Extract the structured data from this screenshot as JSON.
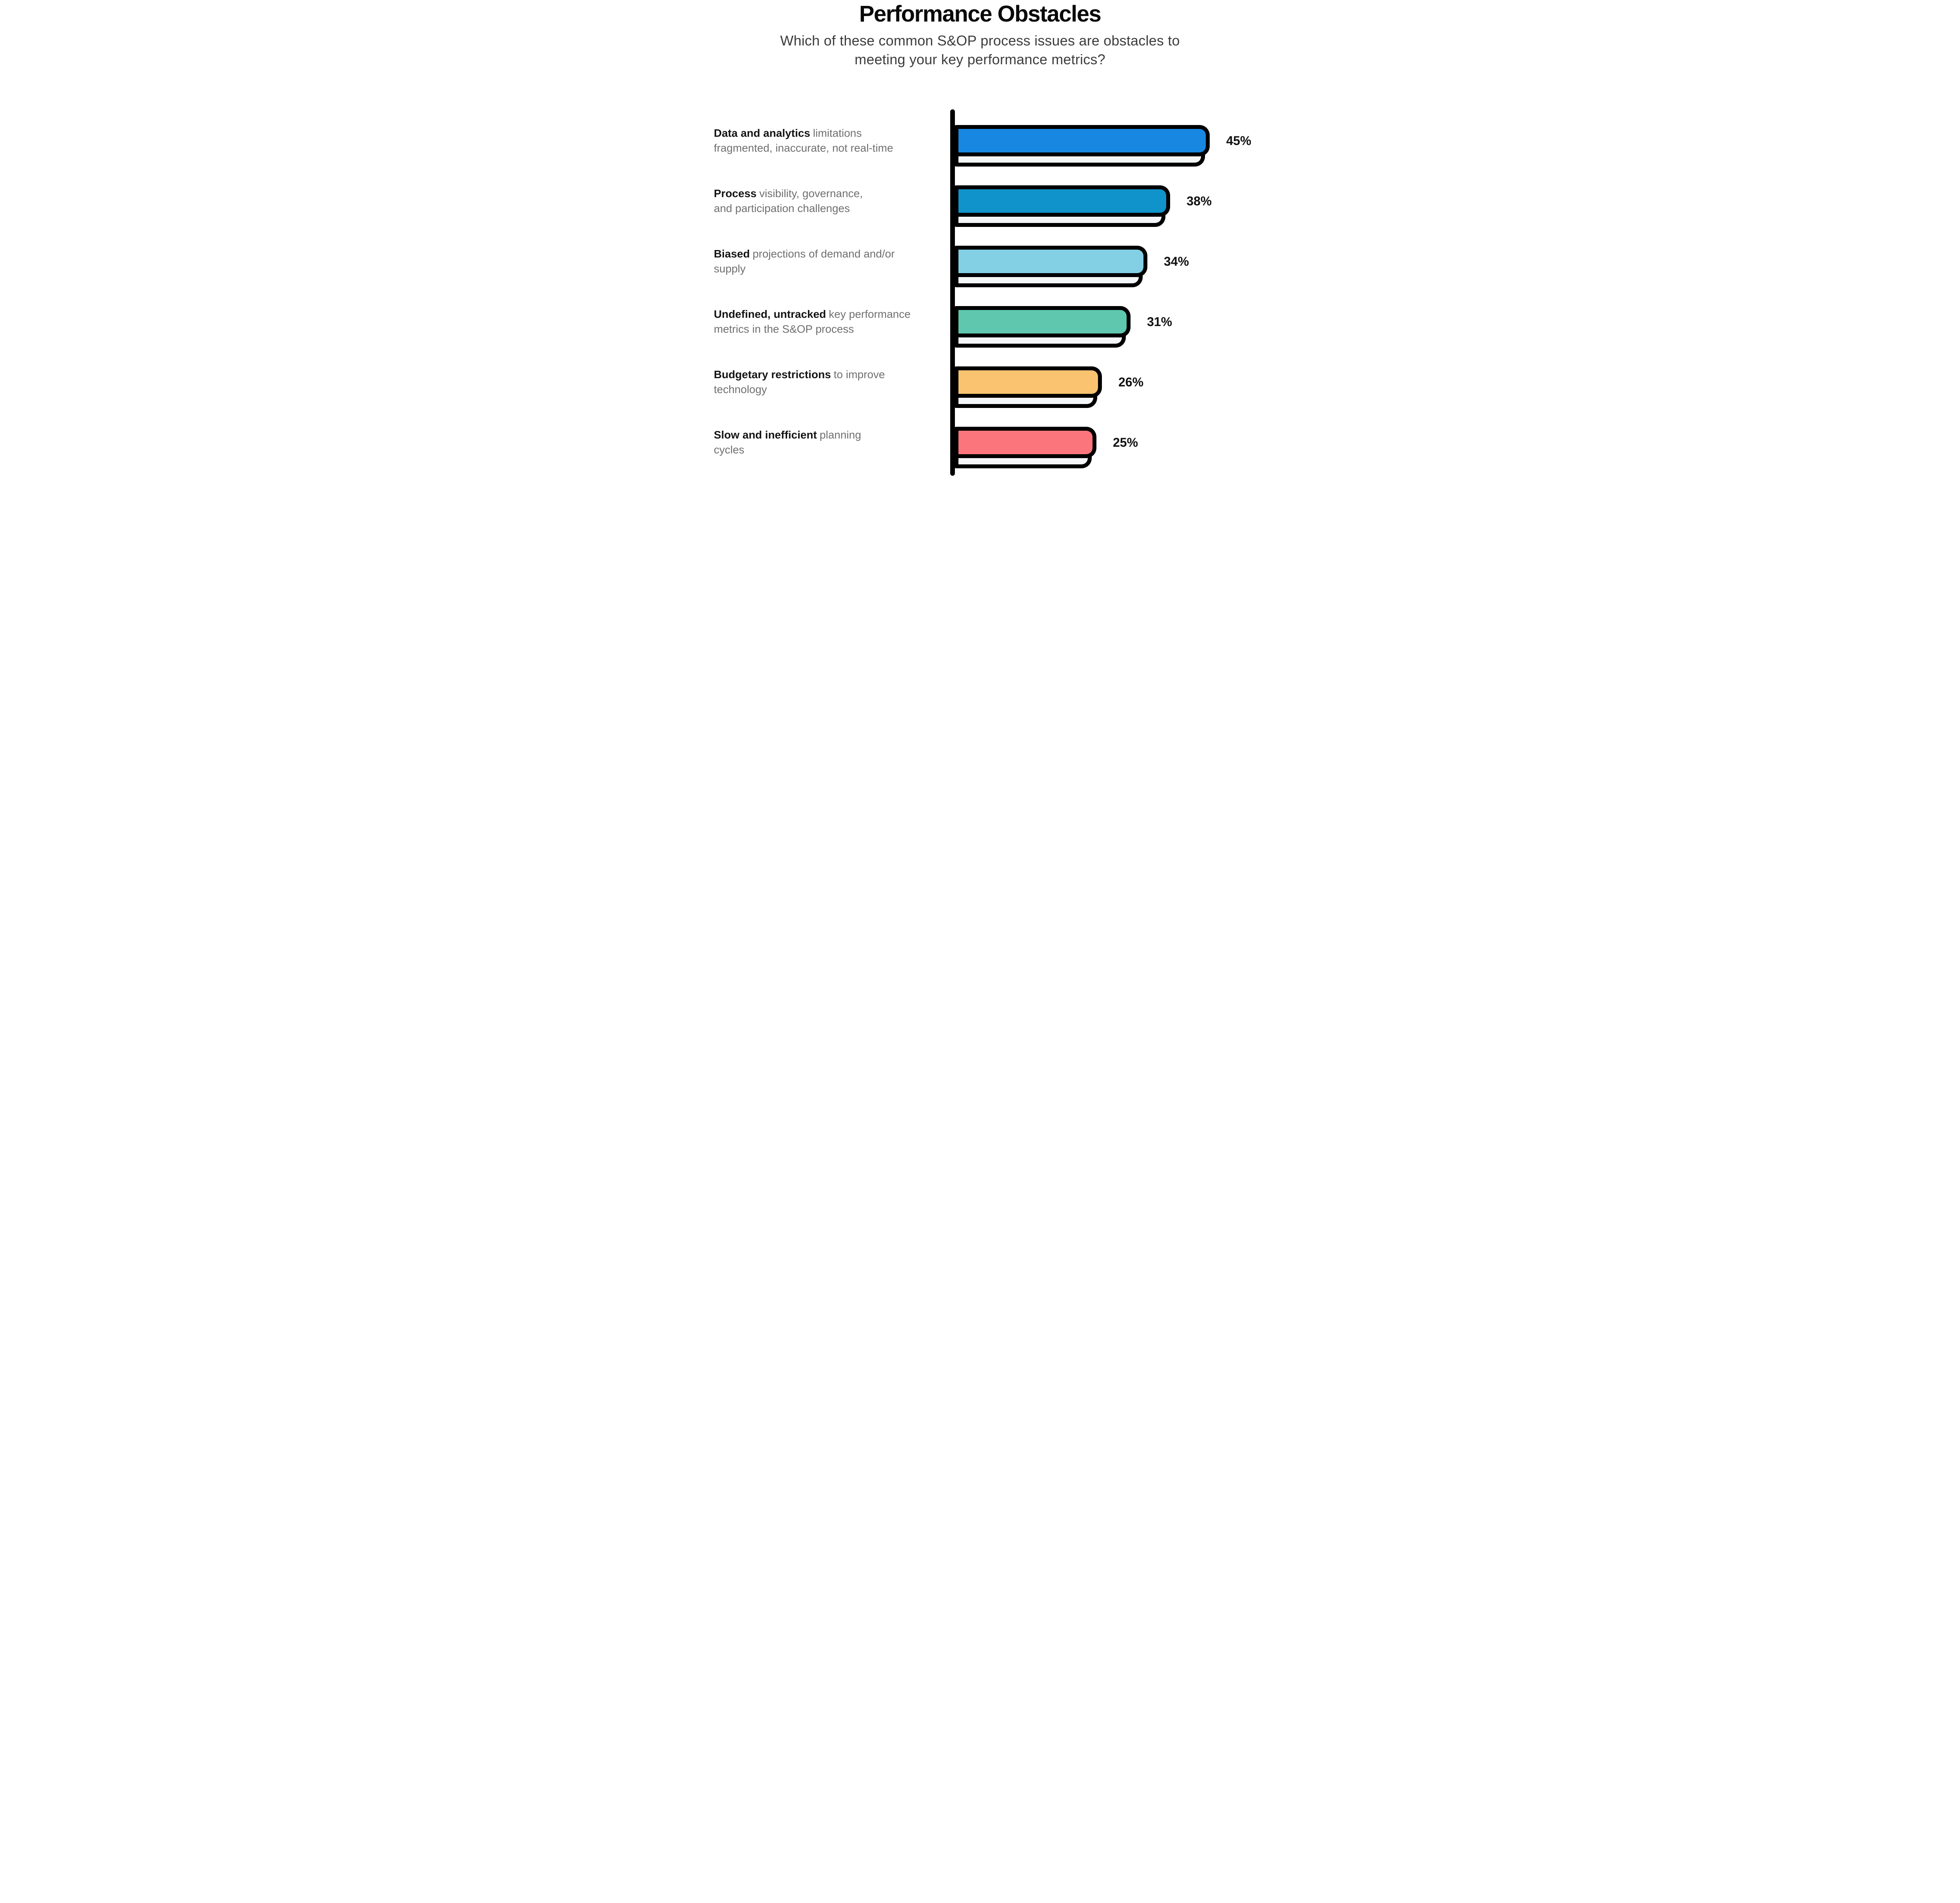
{
  "page": {
    "background": "#FFFFFF"
  },
  "header": {
    "title": "Performance Obstacles",
    "subtitle_line1": "Which of these common S&OP process issues are obstacles to",
    "subtitle_line2": "meeting your key performance metrics?"
  },
  "chart_data": {
    "type": "bar",
    "orientation": "horizontal",
    "value_unit": "%",
    "xlim": [
      0,
      45
    ],
    "grid": false,
    "baseline_color": "#000000",
    "outline_color": "#000000",
    "shadow_color": "#F4F6F8",
    "categories": [
      "Data and analytics limitations fragmented, inaccurate, not real-time",
      "Process visibility, governance, and participation challenges",
      "Biased projections of demand and/or supply",
      "Undefined, untracked key performance metrics in the S&OP process",
      "Budgetary restrictions to improve technology",
      "Slow and inefficient planning cycles"
    ],
    "values": [
      45,
      38,
      34,
      31,
      26,
      25
    ],
    "bars": [
      {
        "label_bold": "Data and analytics",
        "label_gray_line1": "limitations",
        "label_line2": "fragmented, inaccurate, not real-time",
        "value": 45,
        "value_label": "45%",
        "color": "#1787E2"
      },
      {
        "label_bold": "Process",
        "label_gray_line1": "visibility, governance,",
        "label_line2": "and participation challenges",
        "value": 38,
        "value_label": "38%",
        "color": "#0F93CA"
      },
      {
        "label_bold": "Biased",
        "label_gray_line1": "projections of demand and/or",
        "label_line2": "supply",
        "value": 34,
        "value_label": "34%",
        "color": "#83CFE4"
      },
      {
        "label_bold": "Undefined, untracked",
        "label_gray_line1": "key performance",
        "label_line2": "metrics in the S&OP process",
        "value": 31,
        "value_label": "31%",
        "color": "#5EC7AD"
      },
      {
        "label_bold": "Budgetary restrictions",
        "label_gray_line1": "to improve",
        "label_line2": "technology",
        "value": 26,
        "value_label": "26%",
        "color": "#FAC36F"
      },
      {
        "label_bold": "Slow and inefficient",
        "label_gray_line1": "planning",
        "label_line2": "cycles",
        "value": 25,
        "value_label": "25%",
        "color": "#FB767C"
      }
    ]
  }
}
